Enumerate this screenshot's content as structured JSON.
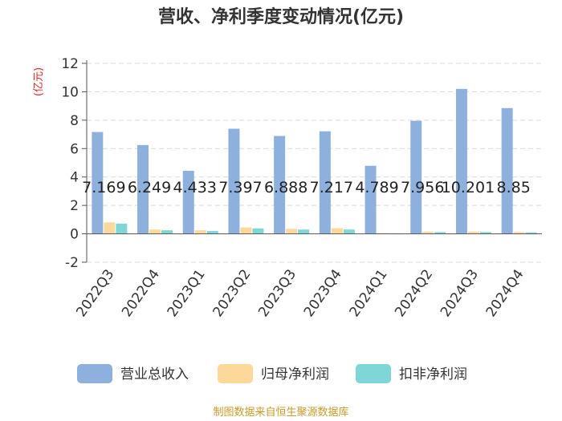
{
  "title": "营收、净利季度变动情况(亿元)",
  "unit_label": "(亿元)",
  "source": "制图数据来自恒生聚源数据库",
  "colors": {
    "revenue": "#8eb0dd",
    "net_profit": "#fcd89a",
    "deducted_net_profit": "#7fd6d6",
    "grid": "#d9d9d9",
    "axis": "#555555",
    "unit": "#e0201b",
    "source": "#c89a28"
  },
  "chart_data": {
    "type": "bar",
    "title": "营收、净利季度变动情况(亿元)",
    "ylabel": "(亿元)",
    "ylim": [
      -2,
      12
    ],
    "yticks": [
      -2,
      0,
      2,
      4,
      6,
      8,
      10,
      12
    ],
    "grid": true,
    "legend_position": "bottom",
    "categories": [
      "2022Q3",
      "2022Q4",
      "2023Q1",
      "2023Q2",
      "2023Q3",
      "2023Q4",
      "2024Q1",
      "2024Q2",
      "2024Q3",
      "2024Q4"
    ],
    "series": [
      {
        "name": "营业总收入",
        "values": [
          7.169,
          6.249,
          4.433,
          7.397,
          6.888,
          7.217,
          4.789,
          7.956,
          10.201,
          8.85
        ],
        "labels": [
          "7.169",
          "6.249",
          "4.433",
          "7.397",
          "6.888",
          "7.217",
          "4.789",
          "7.956",
          "10.201",
          "8.85"
        ]
      },
      {
        "name": "归母净利润",
        "values": [
          0.8,
          0.3,
          0.25,
          0.45,
          0.35,
          0.4,
          0.05,
          0.15,
          0.15,
          0.12
        ]
      },
      {
        "name": "扣非净利润",
        "values": [
          0.72,
          0.25,
          0.2,
          0.38,
          0.3,
          0.3,
          0.03,
          0.12,
          0.12,
          0.1
        ]
      }
    ]
  }
}
